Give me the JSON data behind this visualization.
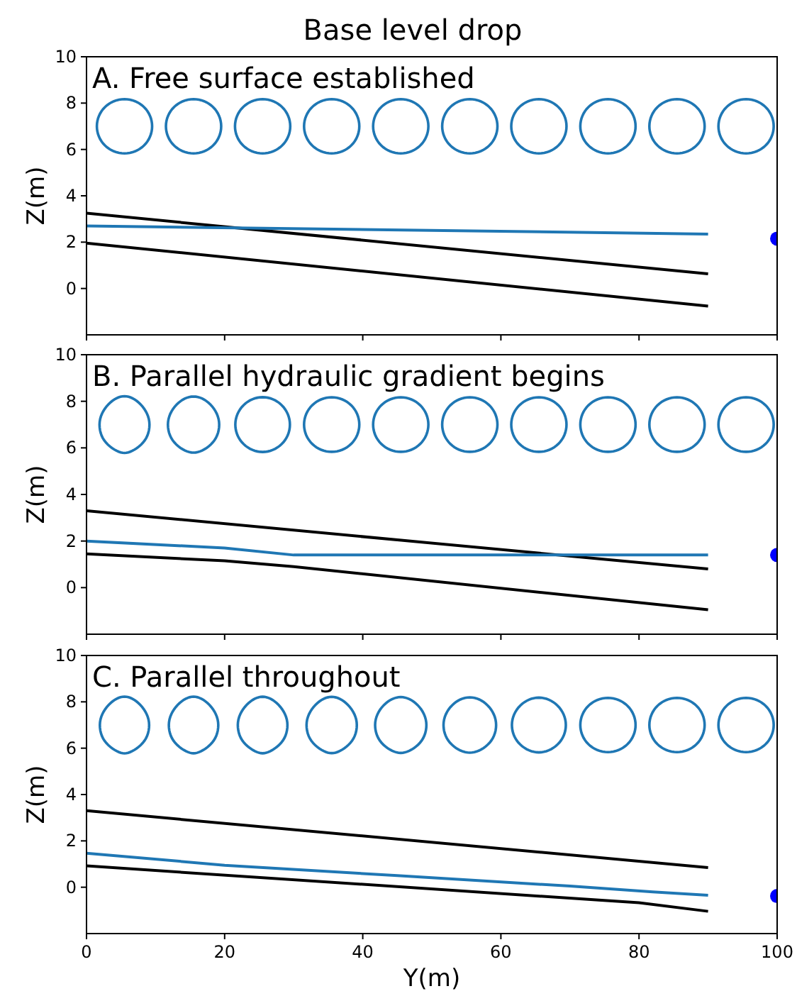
{
  "chart_data": [
    {
      "type": "line",
      "title": "Base level drop",
      "subtitle": "A. Free surface established",
      "ylabel": "Z(m)",
      "xlim": [
        0,
        100
      ],
      "xticks": [
        0,
        20,
        40,
        60,
        80,
        100
      ],
      "ylim": [
        -2,
        10
      ],
      "yticks": [
        0,
        2,
        4,
        6,
        8,
        10
      ],
      "tick_labels": "y",
      "grid": false,
      "legend": false,
      "series": [
        {
          "type": "line",
          "color": "#000000",
          "x": [
            0,
            90
          ],
          "values": [
            3.25,
            0.63
          ]
        },
        {
          "type": "line",
          "color": "#000000",
          "x": [
            0,
            90
          ],
          "values": [
            1.96,
            -0.76
          ]
        },
        {
          "type": "line",
          "color": "#1f77b4",
          "x": [
            0,
            90
          ],
          "values": [
            2.7,
            2.35
          ]
        },
        {
          "type": "scatter",
          "marker": "circle",
          "color": "#0000ff",
          "x": [
            100
          ],
          "values": [
            2.15
          ]
        }
      ]
    },
    {
      "type": "line",
      "subtitle": "B. Parallel hydraulic gradient begins",
      "ylabel": "Z(m)",
      "xlim": [
        0,
        100
      ],
      "xticks": [
        0,
        20,
        40,
        60,
        80,
        100
      ],
      "ylim": [
        -2,
        10
      ],
      "yticks": [
        0,
        2,
        4,
        6,
        8,
        10
      ],
      "tick_labels": "y",
      "grid": false,
      "legend": false,
      "series": [
        {
          "type": "line",
          "color": "#000000",
          "x": [
            0,
            90
          ],
          "values": [
            3.3,
            0.8
          ]
        },
        {
          "type": "line",
          "color": "#000000",
          "x": [
            0,
            20,
            30,
            90
          ],
          "values": [
            1.45,
            1.15,
            0.9,
            -0.95
          ]
        },
        {
          "type": "line",
          "color": "#1f77b4",
          "x": [
            0,
            20,
            30,
            90
          ],
          "values": [
            2.0,
            1.7,
            1.4,
            1.4
          ]
        },
        {
          "type": "scatter",
          "marker": "circle",
          "color": "#0000ff",
          "x": [
            100
          ],
          "values": [
            1.4
          ]
        }
      ]
    },
    {
      "type": "line",
      "subtitle": "C. Parallel throughout",
      "xlabel": "Y(m)",
      "ylabel": "Z(m)",
      "xlim": [
        0,
        100
      ],
      "xticks": [
        0,
        20,
        40,
        60,
        80,
        100
      ],
      "ylim": [
        -2,
        10
      ],
      "yticks": [
        0,
        2,
        4,
        6,
        8,
        10
      ],
      "grid": false,
      "legend": false,
      "series": [
        {
          "type": "line",
          "color": "#000000",
          "x": [
            0,
            90
          ],
          "values": [
            3.3,
            0.85
          ]
        },
        {
          "type": "line",
          "color": "#000000",
          "x": [
            0,
            80,
            90
          ],
          "values": [
            0.92,
            -0.67,
            -1.04
          ]
        },
        {
          "type": "line",
          "color": "#1f77b4",
          "x": [
            0,
            20,
            45,
            70,
            82,
            90
          ],
          "values": [
            1.47,
            0.95,
            0.5,
            0.05,
            -0.2,
            -0.35
          ]
        },
        {
          "type": "scatter",
          "marker": "circle",
          "color": "#0000ff",
          "x": [
            100
          ],
          "values": [
            -0.38
          ]
        }
      ]
    }
  ]
}
